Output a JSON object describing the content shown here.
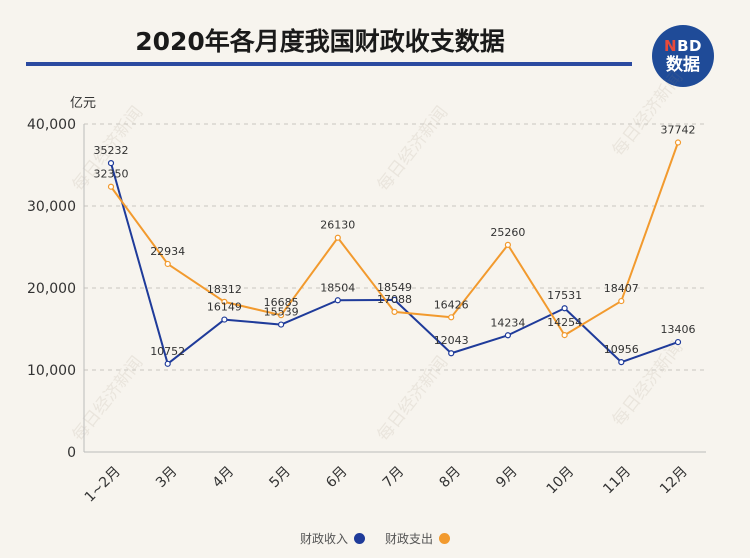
{
  "header": {
    "title": "2020年各月度我国财政收支数据"
  },
  "logo": {
    "top_text_n": "N",
    "top_text_rest": "BD",
    "bottom_text": "数据"
  },
  "watermark": {
    "text": "每日经济新闻"
  },
  "colors": {
    "income": "#1f3b9a",
    "expense": "#f29a2e",
    "accent": "#2b4aa0"
  },
  "chart_data": {
    "type": "line",
    "title": "2020年各月度我国财政收支数据",
    "ylabel": "亿元",
    "xlabel": "",
    "ylim": [
      0,
      40000
    ],
    "yticks": [
      0,
      10000,
      20000,
      30000,
      40000
    ],
    "ytick_labels": [
      "0",
      "10,000",
      "20,000",
      "30,000",
      "40,000"
    ],
    "grid": true,
    "categories": [
      "1~2月",
      "3月",
      "4月",
      "5月",
      "6月",
      "7月",
      "8月",
      "9月",
      "10月",
      "11月",
      "12月"
    ],
    "series": [
      {
        "name": "财政收入",
        "values": [
          35232,
          10752,
          16149,
          15539,
          18504,
          18549,
          12043,
          14234,
          17531,
          10956,
          13406
        ]
      },
      {
        "name": "财政支出",
        "values": [
          32350,
          22934,
          18312,
          16685,
          26130,
          17088,
          16426,
          25260,
          14254,
          18407,
          37742
        ]
      }
    ],
    "legend_position": "bottom"
  }
}
